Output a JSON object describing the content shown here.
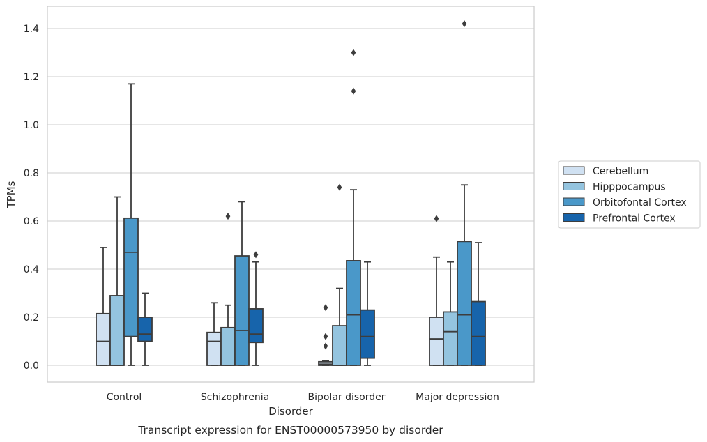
{
  "chart_data": {
    "type": "box",
    "caption": "Transcript expression for ENST00000573950 by disorder",
    "xlabel": "Disorder",
    "ylabel": "TPMs",
    "ylim": [
      -0.07,
      1.49
    ],
    "yticks": [
      "0.0",
      "0.2",
      "0.4",
      "0.6",
      "0.8",
      "1.0",
      "1.2",
      "1.4"
    ],
    "categories": [
      "Control",
      "Schizophrenia",
      "Bipolar disorder",
      "Major depression"
    ],
    "grid": true,
    "legend_position": "right",
    "series": [
      {
        "name": "Cerebellum",
        "color": "#d0e1f2",
        "boxes": [
          {
            "q1": 0.0,
            "median": 0.1,
            "q3": 0.215,
            "whisker_low": 0.0,
            "whisker_high": 0.49,
            "outliers": []
          },
          {
            "q1": 0.0,
            "median": 0.1,
            "q3": 0.137,
            "whisker_low": 0.0,
            "whisker_high": 0.26,
            "outliers": []
          },
          {
            "q1": 0.0,
            "median": 0.005,
            "q3": 0.015,
            "whisker_low": 0.0,
            "whisker_high": 0.02,
            "outliers": [
              0.08,
              0.12,
              0.24
            ]
          },
          {
            "q1": 0.0,
            "median": 0.11,
            "q3": 0.2,
            "whisker_low": 0.0,
            "whisker_high": 0.45,
            "outliers": [
              0.61
            ]
          }
        ]
      },
      {
        "name": "Hipppocampus",
        "color": "#94c4df",
        "boxes": [
          {
            "q1": 0.0,
            "median": 0.0,
            "q3": 0.29,
            "whisker_low": 0.0,
            "whisker_high": 0.7,
            "outliers": []
          },
          {
            "q1": 0.0,
            "median": 0.0,
            "q3": 0.157,
            "whisker_low": 0.0,
            "whisker_high": 0.25,
            "outliers": [
              0.62
            ]
          },
          {
            "q1": 0.0,
            "median": 0.0,
            "q3": 0.165,
            "whisker_low": 0.0,
            "whisker_high": 0.32,
            "outliers": [
              0.74
            ]
          },
          {
            "q1": 0.0,
            "median": 0.14,
            "q3": 0.222,
            "whisker_low": 0.0,
            "whisker_high": 0.43,
            "outliers": []
          }
        ]
      },
      {
        "name": "Orbitofontal Cortex",
        "color": "#4a98c9",
        "boxes": [
          {
            "q1": 0.12,
            "median": 0.47,
            "q3": 0.612,
            "whisker_low": 0.0,
            "whisker_high": 1.17,
            "outliers": []
          },
          {
            "q1": 0.0,
            "median": 0.145,
            "q3": 0.455,
            "whisker_low": 0.0,
            "whisker_high": 0.68,
            "outliers": []
          },
          {
            "q1": 0.0,
            "median": 0.21,
            "q3": 0.435,
            "whisker_low": 0.0,
            "whisker_high": 0.73,
            "outliers": [
              1.14,
              1.3
            ]
          },
          {
            "q1": 0.0,
            "median": 0.21,
            "q3": 0.515,
            "whisker_low": 0.0,
            "whisker_high": 0.75,
            "outliers": [
              1.42
            ]
          }
        ]
      },
      {
        "name": "Prefrontal Cortex",
        "color": "#1764ab",
        "boxes": [
          {
            "q1": 0.1,
            "median": 0.13,
            "q3": 0.2,
            "whisker_low": 0.0,
            "whisker_high": 0.3,
            "outliers": []
          },
          {
            "q1": 0.095,
            "median": 0.13,
            "q3": 0.235,
            "whisker_low": 0.0,
            "whisker_high": 0.43,
            "outliers": [
              0.46
            ]
          },
          {
            "q1": 0.03,
            "median": 0.12,
            "q3": 0.23,
            "whisker_low": 0.0,
            "whisker_high": 0.43,
            "outliers": []
          },
          {
            "q1": 0.0,
            "median": 0.12,
            "q3": 0.265,
            "whisker_low": 0.0,
            "whisker_high": 0.51,
            "outliers": []
          }
        ]
      }
    ]
  }
}
